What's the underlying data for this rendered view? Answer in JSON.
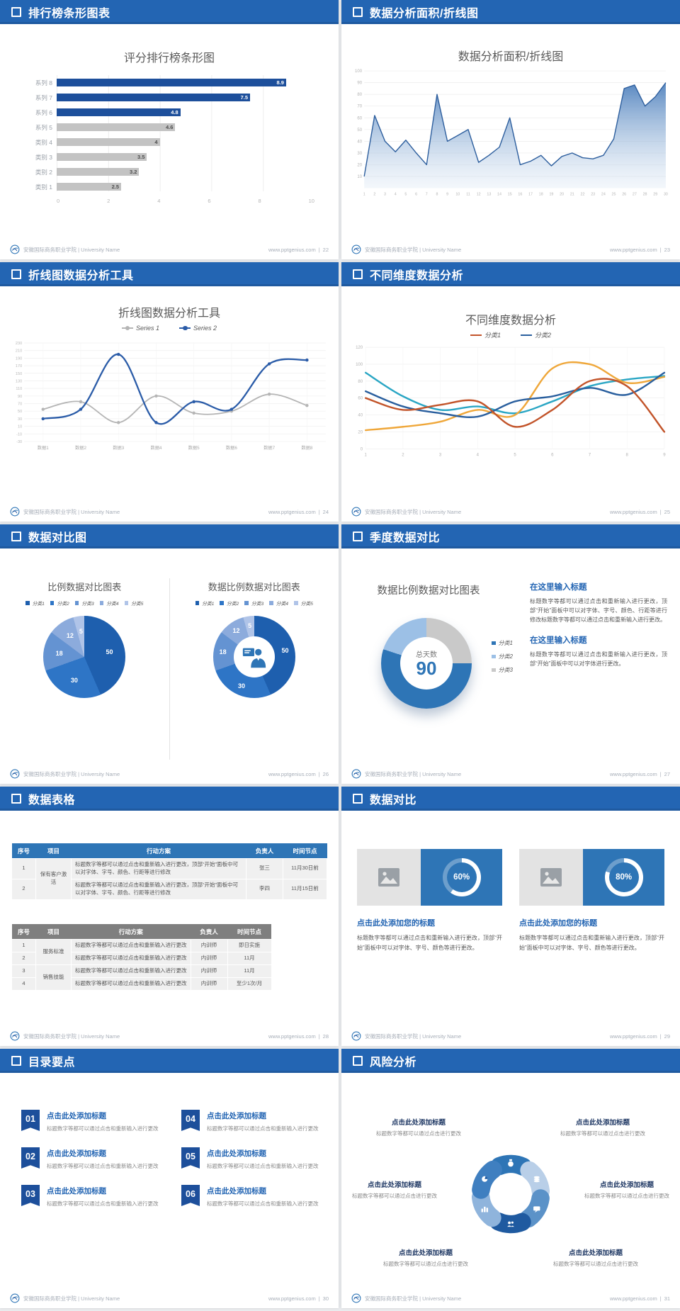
{
  "accent": "#2365b3",
  "footer": {
    "left": "安徽国际商务职业学院 | University Name",
    "site": "www.pptgenius.com",
    "sep": "|"
  },
  "slides": {
    "s1": {
      "header": "排行榜条形图表",
      "page": "22"
    },
    "s2": {
      "header": "数据分析面积/折线图",
      "page": "23"
    },
    "s3": {
      "header": "折线图数据分析工具",
      "page": "24"
    },
    "s4": {
      "header": "不同维度数据分析",
      "page": "25"
    },
    "s5": {
      "header": "数据对比图",
      "page": "26"
    },
    "s6": {
      "header": "季度数据对比",
      "page": "27",
      "blocks": [
        {
          "title": "在这里输入标题",
          "body": "标题数字等都可以通过点击和重新输入进行更改，顶部“开始”面板中可以对字体、字号、颜色、行距等进行修改标题数字等都可以通过点击和重新输入进行更改。"
        },
        {
          "title": "在这里输入标题",
          "body": "标题数字等都可以通过点击和重新输入进行更改，顶部“开始”面板中可以对字体进行更改。"
        }
      ]
    },
    "s7": {
      "header": "数据表格",
      "page": "28",
      "table1": {
        "headers": [
          "序号",
          "项目",
          "行动方案",
          "负责人",
          "时间节点"
        ],
        "project": "保有客户激活",
        "rows": [
          {
            "no": "1",
            "plan": "标题数字等都可以通过点击和重新输入进行更改，顶部“开始”面板中可以对字体、字号、颜色、行距等进行修改",
            "owner": "张三",
            "time": "11月30日前"
          },
          {
            "no": "2",
            "plan": "标题数字等都可以通过点击和重新输入进行更改，顶部“开始”面板中可以对字体、字号、颜色、行距等进行修改",
            "owner": "李四",
            "time": "11月15日前"
          }
        ]
      },
      "table2": {
        "headers": [
          "序号",
          "项目",
          "行动方案",
          "负责人",
          "时间节点"
        ],
        "groups": [
          {
            "project": "服务标准",
            "rows": [
              {
                "no": "1",
                "plan": "标题数字等都可以通过点击和重新输入进行更改",
                "owner": "内训师",
                "time": "即日实施"
              },
              {
                "no": "2",
                "plan": "标题数字等都可以通过点击和重新输入进行更改",
                "owner": "内训师",
                "time": "11月"
              }
            ]
          },
          {
            "project": "销售技能",
            "rows": [
              {
                "no": "3",
                "plan": "标题数字等都可以通过点击和重新输入进行更改",
                "owner": "内训师",
                "time": "11月"
              },
              {
                "no": "4",
                "plan": "标题数字等都可以通过点击和重新输入进行更改",
                "owner": "内训师",
                "time": "至少1次/月"
              }
            ]
          }
        ]
      }
    },
    "s8": {
      "header": "数据对比",
      "page": "29",
      "cards": [
        {
          "title": "点击此处添加您的标题",
          "body": "标题数字等都可以通过点击和重新输入进行更改，顶部“开始”面板中可以对字体、字号、颜色等进行更改。"
        },
        {
          "title": "点击此处添加您的标题",
          "body": "标题数字等都可以通过点击和重新输入进行更改，顶部“开始”面板中可以对字体、字号、颜色等进行更改。"
        }
      ]
    },
    "s9": {
      "header": "目录要点",
      "page": "30",
      "items": [
        {
          "num": "01",
          "title": "点击此处添加标题",
          "body": "标题数字等都可以通过点击和重新输入进行更改"
        },
        {
          "num": "04",
          "title": "点击此处添加标题",
          "body": "标题数字等都可以通过点击和重新输入进行更改"
        },
        {
          "num": "02",
          "title": "点击此处添加标题",
          "body": "标题数字等都可以通过点击和重新输入进行更改"
        },
        {
          "num": "05",
          "title": "点击此处添加标题",
          "body": "标题数字等都可以通过点击和重新输入进行更改"
        },
        {
          "num": "03",
          "title": "点击此处添加标题",
          "body": "标题数字等都可以通过点击和重新输入进行更改"
        },
        {
          "num": "06",
          "title": "点击此处添加标题",
          "body": "标题数字等都可以通过点击和重新输入进行更改"
        }
      ]
    },
    "s10": {
      "header": "风险分析",
      "page": "31",
      "labels": [
        {
          "title": "点击此处添加标题",
          "body": "标题数字等都可以通过点击进行更改"
        },
        {
          "title": "点击此处添加标题",
          "body": "标题数字等都可以通过点击进行更改"
        },
        {
          "title": "点击此处添加标题",
          "body": "标题数字等都可以通过点击进行更改"
        },
        {
          "title": "点击此处添加标题",
          "body": "标题数字等都可以通过点击进行更改"
        },
        {
          "title": "点击此处添加标题",
          "body": "标题数字等都可以通过点击进行更改"
        },
        {
          "title": "点击此处添加标题",
          "body": "标题数字等都可以通过点击进行更改"
        }
      ]
    }
  },
  "chart_data": [
    {
      "id": "ranking-bar",
      "type": "bar",
      "orientation": "horizontal",
      "title": "评分排行榜条形图",
      "categories": [
        "系列 8",
        "系列 7",
        "系列 6",
        "系列 5",
        "类别 4",
        "类别 3",
        "类别 2",
        "类别 1"
      ],
      "values": [
        8.9,
        7.5,
        4.8,
        4.6,
        4,
        3.5,
        3.2,
        2.5
      ],
      "colors": [
        "#1d4f9b",
        "#1d4f9b",
        "#1d4f9b",
        "#c3c3c3",
        "#c3c3c3",
        "#c3c3c3",
        "#c3c3c3",
        "#c3c3c3"
      ],
      "xticks": [
        0,
        2,
        4,
        6,
        8,
        10
      ],
      "xlim": [
        0,
        10
      ]
    },
    {
      "id": "area-trend",
      "type": "area",
      "title": "数据分析面积/折线图",
      "x": [
        1,
        2,
        3,
        4,
        5,
        6,
        7,
        8,
        9,
        10,
        11,
        12,
        13,
        14,
        15,
        16,
        17,
        18,
        19,
        20,
        21,
        22,
        23,
        24,
        25,
        26,
        27,
        28,
        29,
        30
      ],
      "values": [
        10,
        62,
        40,
        31,
        41,
        30,
        20,
        80,
        40,
        45,
        50,
        22,
        28,
        35,
        60,
        20,
        23,
        28,
        19,
        27,
        30,
        26,
        25,
        28,
        42,
        85,
        88,
        70,
        78,
        90
      ],
      "yticks": [
        100,
        90,
        80,
        70,
        60,
        50,
        40,
        30,
        20,
        10
      ],
      "ylim": [
        0,
        100
      ],
      "line_color": "#2e5f9e",
      "fill_color": "#4f81bd"
    },
    {
      "id": "dual-line",
      "type": "line",
      "title": "折线图数据分析工具",
      "categories": [
        "数据1",
        "数据2",
        "数据3",
        "数据4",
        "数据5",
        "数据6",
        "数据7",
        "数据8"
      ],
      "series": [
        {
          "name": "Series 1",
          "color": "#b5b5b5",
          "values": [
            55,
            75,
            20,
            90,
            45,
            50,
            95,
            65
          ]
        },
        {
          "name": "Series 2",
          "color": "#2b5ca8",
          "values": [
            30,
            55,
            200,
            20,
            75,
            55,
            175,
            185
          ]
        }
      ],
      "yticks": [
        230,
        210,
        190,
        170,
        150,
        130,
        110,
        90,
        70,
        50,
        30,
        10,
        -10,
        -30
      ],
      "ylim": [
        -30,
        230
      ]
    },
    {
      "id": "multi-line",
      "type": "line",
      "title": "不同维度数据分析",
      "x": [
        1,
        2,
        3,
        4,
        5,
        6,
        7,
        8,
        9
      ],
      "series": [
        {
          "name": "分类1",
          "color": "#c2542a",
          "values": [
            60,
            46,
            52,
            56,
            26,
            46,
            80,
            74,
            20
          ]
        },
        {
          "name": "分类2",
          "color": "#2a5f9e",
          "values": [
            68,
            50,
            42,
            38,
            56,
            62,
            72,
            64,
            90
          ]
        },
        {
          "name": "",
          "color": "#2aa6c4",
          "values": [
            90,
            62,
            46,
            50,
            42,
            56,
            74,
            82,
            86
          ]
        },
        {
          "name": "",
          "color": "#efa73a",
          "values": [
            22,
            26,
            32,
            46,
            40,
            95,
            100,
            78,
            85
          ]
        }
      ],
      "yticks": [
        120,
        100,
        80,
        60,
        40,
        20,
        0
      ],
      "ylim": [
        0,
        120
      ]
    },
    {
      "id": "pie-compare",
      "type": "pie",
      "title": "比例数据对比图表",
      "labels": [
        "分类1",
        "分类2",
        "分类3",
        "分类4",
        "分类5"
      ],
      "values": [
        50,
        30,
        18,
        12,
        5
      ],
      "colors": [
        "#1e5fae",
        "#2e75c6",
        "#6493d2",
        "#8cabdc",
        "#b0c4e8"
      ]
    },
    {
      "id": "donut-compare",
      "type": "pie",
      "donut": true,
      "title": "数据比例数据对比图表",
      "labels": [
        "分类1",
        "分类2",
        "分类3",
        "分类4",
        "分类5"
      ],
      "values": [
        50,
        30,
        18,
        12,
        5
      ],
      "colors": [
        "#1e5fae",
        "#2e75c6",
        "#6493d2",
        "#8cabdc",
        "#b0c4e8"
      ],
      "center_icon": "presenter-icon"
    },
    {
      "id": "quarter-donut",
      "type": "pie",
      "donut": true,
      "title": "数据比例数据对比图表",
      "labels": [
        "分类1",
        "分类2",
        "分类3"
      ],
      "values": [
        55,
        20,
        25
      ],
      "colors": [
        "#2e75b6",
        "#9cc0e6",
        "#c9c9c9"
      ],
      "center_label": "总天数",
      "center_value": "90"
    },
    {
      "id": "progress-rings",
      "type": "progress",
      "values": [
        60,
        80
      ],
      "labels": [
        "60%",
        "80%"
      ]
    }
  ]
}
